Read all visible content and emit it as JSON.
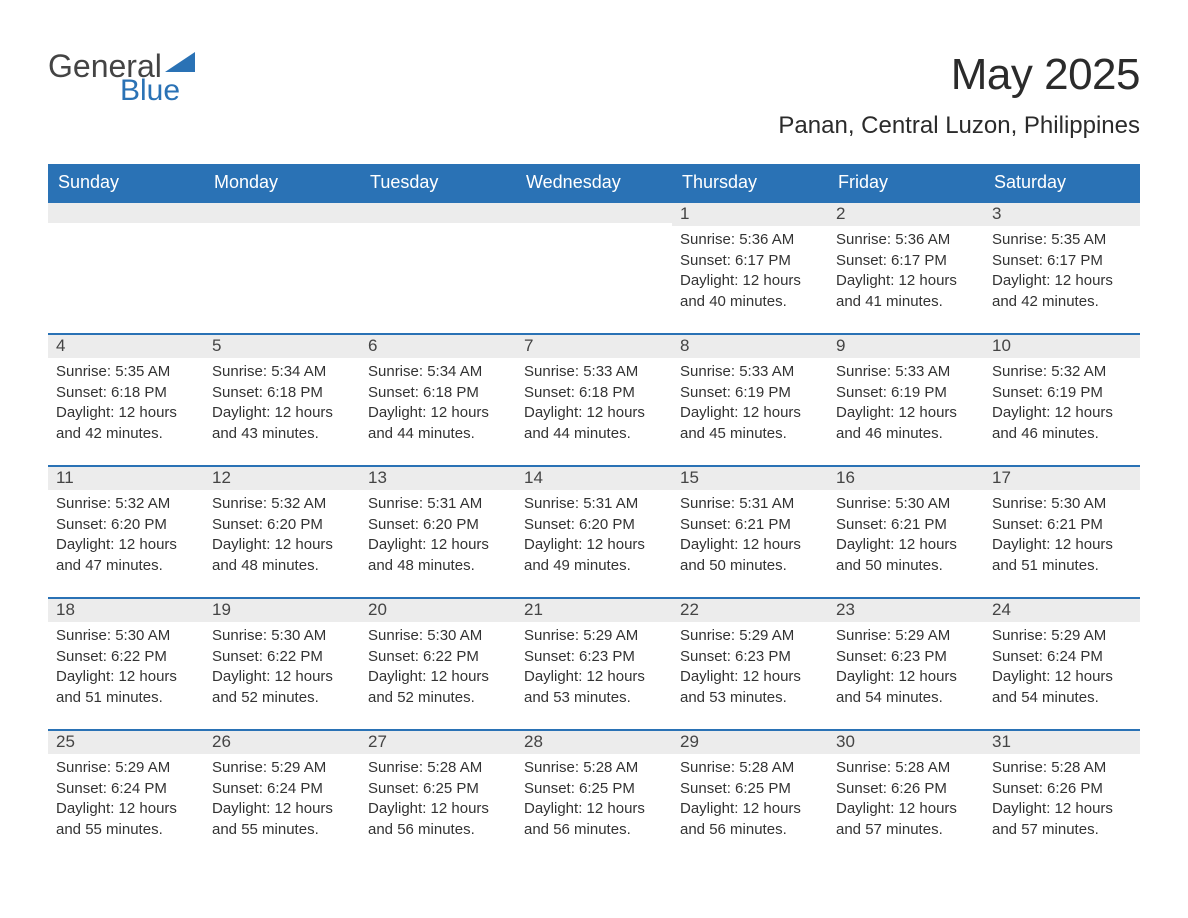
{
  "logo": {
    "text1": "General",
    "text2": "Blue",
    "tri_color": "#2a72b5"
  },
  "header": {
    "month_title": "May 2025",
    "location": "Panan, Central Luzon, Philippines"
  },
  "colors": {
    "header_bg": "#2a72b5",
    "header_text": "#ffffff",
    "daynum_bg": "#ececec",
    "daynum_border": "#2a72b5",
    "body_text": "#333333",
    "page_bg": "#ffffff"
  },
  "typography": {
    "month_title_fontsize": 44,
    "location_fontsize": 24,
    "weekday_fontsize": 18,
    "daynum_fontsize": 17,
    "body_fontsize": 15
  },
  "weekdays": [
    "Sunday",
    "Monday",
    "Tuesday",
    "Wednesday",
    "Thursday",
    "Friday",
    "Saturday"
  ],
  "weeks": [
    [
      {
        "n": "",
        "sr": "",
        "ss": "",
        "dl": ""
      },
      {
        "n": "",
        "sr": "",
        "ss": "",
        "dl": ""
      },
      {
        "n": "",
        "sr": "",
        "ss": "",
        "dl": ""
      },
      {
        "n": "",
        "sr": "",
        "ss": "",
        "dl": ""
      },
      {
        "n": "1",
        "sr": "Sunrise: 5:36 AM",
        "ss": "Sunset: 6:17 PM",
        "dl": "Daylight: 12 hours and 40 minutes."
      },
      {
        "n": "2",
        "sr": "Sunrise: 5:36 AM",
        "ss": "Sunset: 6:17 PM",
        "dl": "Daylight: 12 hours and 41 minutes."
      },
      {
        "n": "3",
        "sr": "Sunrise: 5:35 AM",
        "ss": "Sunset: 6:17 PM",
        "dl": "Daylight: 12 hours and 42 minutes."
      }
    ],
    [
      {
        "n": "4",
        "sr": "Sunrise: 5:35 AM",
        "ss": "Sunset: 6:18 PM",
        "dl": "Daylight: 12 hours and 42 minutes."
      },
      {
        "n": "5",
        "sr": "Sunrise: 5:34 AM",
        "ss": "Sunset: 6:18 PM",
        "dl": "Daylight: 12 hours and 43 minutes."
      },
      {
        "n": "6",
        "sr": "Sunrise: 5:34 AM",
        "ss": "Sunset: 6:18 PM",
        "dl": "Daylight: 12 hours and 44 minutes."
      },
      {
        "n": "7",
        "sr": "Sunrise: 5:33 AM",
        "ss": "Sunset: 6:18 PM",
        "dl": "Daylight: 12 hours and 44 minutes."
      },
      {
        "n": "8",
        "sr": "Sunrise: 5:33 AM",
        "ss": "Sunset: 6:19 PM",
        "dl": "Daylight: 12 hours and 45 minutes."
      },
      {
        "n": "9",
        "sr": "Sunrise: 5:33 AM",
        "ss": "Sunset: 6:19 PM",
        "dl": "Daylight: 12 hours and 46 minutes."
      },
      {
        "n": "10",
        "sr": "Sunrise: 5:32 AM",
        "ss": "Sunset: 6:19 PM",
        "dl": "Daylight: 12 hours and 46 minutes."
      }
    ],
    [
      {
        "n": "11",
        "sr": "Sunrise: 5:32 AM",
        "ss": "Sunset: 6:20 PM",
        "dl": "Daylight: 12 hours and 47 minutes."
      },
      {
        "n": "12",
        "sr": "Sunrise: 5:32 AM",
        "ss": "Sunset: 6:20 PM",
        "dl": "Daylight: 12 hours and 48 minutes."
      },
      {
        "n": "13",
        "sr": "Sunrise: 5:31 AM",
        "ss": "Sunset: 6:20 PM",
        "dl": "Daylight: 12 hours and 48 minutes."
      },
      {
        "n": "14",
        "sr": "Sunrise: 5:31 AM",
        "ss": "Sunset: 6:20 PM",
        "dl": "Daylight: 12 hours and 49 minutes."
      },
      {
        "n": "15",
        "sr": "Sunrise: 5:31 AM",
        "ss": "Sunset: 6:21 PM",
        "dl": "Daylight: 12 hours and 50 minutes."
      },
      {
        "n": "16",
        "sr": "Sunrise: 5:30 AM",
        "ss": "Sunset: 6:21 PM",
        "dl": "Daylight: 12 hours and 50 minutes."
      },
      {
        "n": "17",
        "sr": "Sunrise: 5:30 AM",
        "ss": "Sunset: 6:21 PM",
        "dl": "Daylight: 12 hours and 51 minutes."
      }
    ],
    [
      {
        "n": "18",
        "sr": "Sunrise: 5:30 AM",
        "ss": "Sunset: 6:22 PM",
        "dl": "Daylight: 12 hours and 51 minutes."
      },
      {
        "n": "19",
        "sr": "Sunrise: 5:30 AM",
        "ss": "Sunset: 6:22 PM",
        "dl": "Daylight: 12 hours and 52 minutes."
      },
      {
        "n": "20",
        "sr": "Sunrise: 5:30 AM",
        "ss": "Sunset: 6:22 PM",
        "dl": "Daylight: 12 hours and 52 minutes."
      },
      {
        "n": "21",
        "sr": "Sunrise: 5:29 AM",
        "ss": "Sunset: 6:23 PM",
        "dl": "Daylight: 12 hours and 53 minutes."
      },
      {
        "n": "22",
        "sr": "Sunrise: 5:29 AM",
        "ss": "Sunset: 6:23 PM",
        "dl": "Daylight: 12 hours and 53 minutes."
      },
      {
        "n": "23",
        "sr": "Sunrise: 5:29 AM",
        "ss": "Sunset: 6:23 PM",
        "dl": "Daylight: 12 hours and 54 minutes."
      },
      {
        "n": "24",
        "sr": "Sunrise: 5:29 AM",
        "ss": "Sunset: 6:24 PM",
        "dl": "Daylight: 12 hours and 54 minutes."
      }
    ],
    [
      {
        "n": "25",
        "sr": "Sunrise: 5:29 AM",
        "ss": "Sunset: 6:24 PM",
        "dl": "Daylight: 12 hours and 55 minutes."
      },
      {
        "n": "26",
        "sr": "Sunrise: 5:29 AM",
        "ss": "Sunset: 6:24 PM",
        "dl": "Daylight: 12 hours and 55 minutes."
      },
      {
        "n": "27",
        "sr": "Sunrise: 5:28 AM",
        "ss": "Sunset: 6:25 PM",
        "dl": "Daylight: 12 hours and 56 minutes."
      },
      {
        "n": "28",
        "sr": "Sunrise: 5:28 AM",
        "ss": "Sunset: 6:25 PM",
        "dl": "Daylight: 12 hours and 56 minutes."
      },
      {
        "n": "29",
        "sr": "Sunrise: 5:28 AM",
        "ss": "Sunset: 6:25 PM",
        "dl": "Daylight: 12 hours and 56 minutes."
      },
      {
        "n": "30",
        "sr": "Sunrise: 5:28 AM",
        "ss": "Sunset: 6:26 PM",
        "dl": "Daylight: 12 hours and 57 minutes."
      },
      {
        "n": "31",
        "sr": "Sunrise: 5:28 AM",
        "ss": "Sunset: 6:26 PM",
        "dl": "Daylight: 12 hours and 57 minutes."
      }
    ]
  ]
}
